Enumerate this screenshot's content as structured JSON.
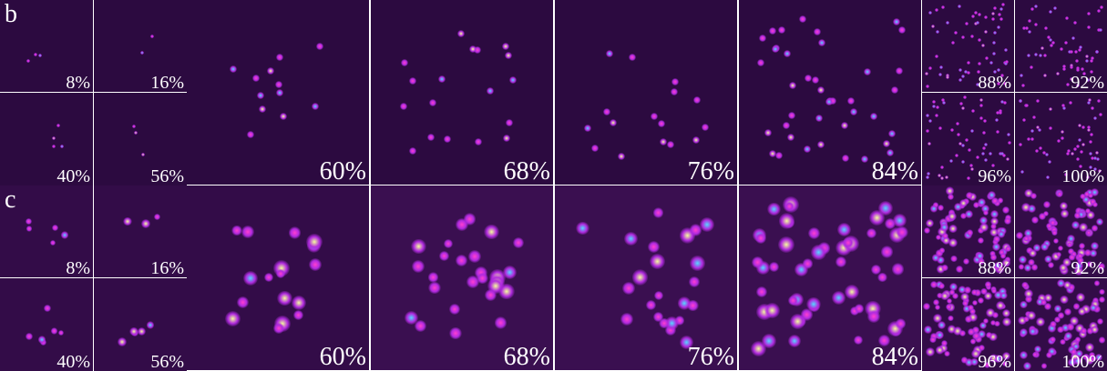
{
  "rows": [
    {
      "label": "b",
      "panels": [
        "8%",
        "16%",
        "40%",
        "56%",
        "60%",
        "68%",
        "76%",
        "84%",
        "88%",
        "92%",
        "96%",
        "100%"
      ]
    },
    {
      "label": "c",
      "panels": [
        "8%",
        "16%",
        "40%",
        "56%",
        "60%",
        "68%",
        "76%",
        "84%",
        "88%",
        "92%",
        "96%",
        "100%"
      ]
    }
  ]
}
